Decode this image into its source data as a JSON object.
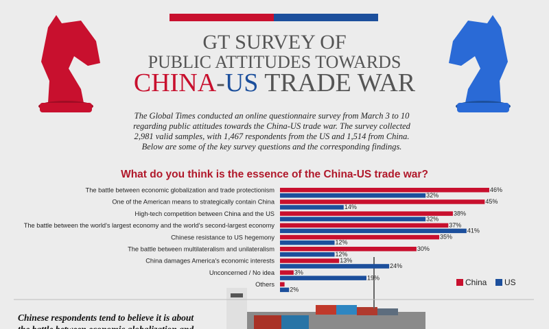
{
  "header": {
    "title_line1": "GT SURVEY OF",
    "title_line2": "PUBLIC ATTITUDES TOWARDS",
    "title_line3": [
      {
        "text": "CHINA",
        "color": "#c8102e"
      },
      {
        "text": "-",
        "color": "#555555"
      },
      {
        "text": "US",
        "color": "#1c4f9c"
      },
      {
        "text": " TRADE WAR",
        "color": "#555555"
      }
    ]
  },
  "intro": [
    "The Global Times conducted an online questionnaire survey from March 3 to 10",
    "regarding public attitudes towards the China-US trade war. The survey collected",
    "2,981 valid samples, with 1,467 respondents from the US and 1,514 from China.",
    "Below are some of the key survey questions and the corresponding findings."
  ],
  "chart_data": {
    "type": "bar",
    "orientation": "horizontal",
    "title": "What do you think is the essence of the China-US trade war?",
    "categories": [
      "The battle between economic globalization and trade protectionism",
      "One of the American means to strategically contain China",
      "High-tech competition between China and the US",
      "The battle between the world's largest economy and the world's second-largest economy",
      "Chinese resistance to US hegemony",
      "The battle between multilateralism and unilateralism",
      "China damages America's economic interests",
      "Unconcerned / No idea",
      "Others"
    ],
    "series": [
      {
        "name": "China",
        "color": "#c8102e",
        "values": [
          46,
          45,
          38,
          37,
          35,
          30,
          13,
          3,
          1
        ],
        "value_labels": [
          "46%",
          "45%",
          "38%",
          "37%",
          "35%",
          "30%",
          "13%",
          "3%",
          null
        ]
      },
      {
        "name": "US",
        "color": "#1c4f9c",
        "values": [
          32,
          14,
          32,
          41,
          12,
          12,
          24,
          19,
          2
        ],
        "value_labels": [
          "32%",
          "14%",
          "32%",
          "41%",
          "12%",
          "12%",
          "24%",
          "19%",
          "2%"
        ]
      }
    ],
    "legend": "bottom-right"
  },
  "footer_text": [
    "Chinese respondents tend to believe it is about",
    "the battle between economic globalization and"
  ]
}
